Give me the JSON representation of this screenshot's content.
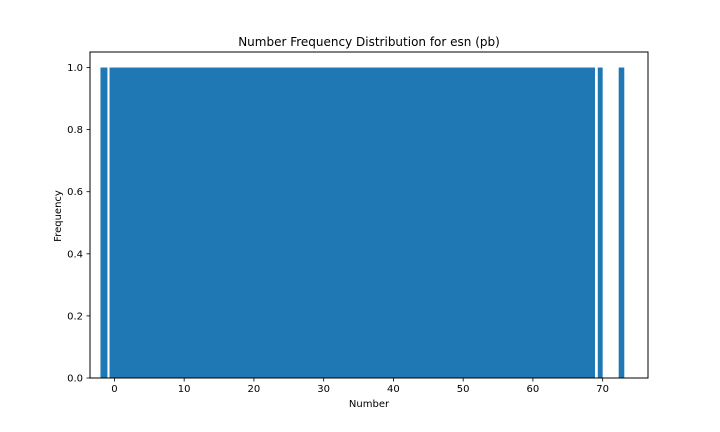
{
  "chart_data": {
    "type": "bar",
    "title": "Number Frequency Distribution for esn (pb)",
    "xlabel": "Number",
    "ylabel": "Frequency",
    "xlim": [
      -3.5,
      76.5
    ],
    "ylim": [
      0,
      1.05
    ],
    "x_ticks": [
      0,
      10,
      20,
      30,
      40,
      50,
      60,
      70
    ],
    "y_ticks": [
      0.0,
      0.2,
      0.4,
      0.6,
      0.8,
      1.0
    ],
    "bars": [
      {
        "x_start": -2,
        "x_end": -1,
        "value": 1.0
      },
      {
        "x_start": -0.7,
        "x_end": 68.9,
        "value": 1.0
      },
      {
        "x_start": 69.3,
        "x_end": 70.0,
        "value": 1.0
      },
      {
        "x_start": 72.3,
        "x_end": 73.1,
        "value": 1.0
      }
    ],
    "bar_color": "#1f77b4",
    "grid": false,
    "legend": "none"
  }
}
